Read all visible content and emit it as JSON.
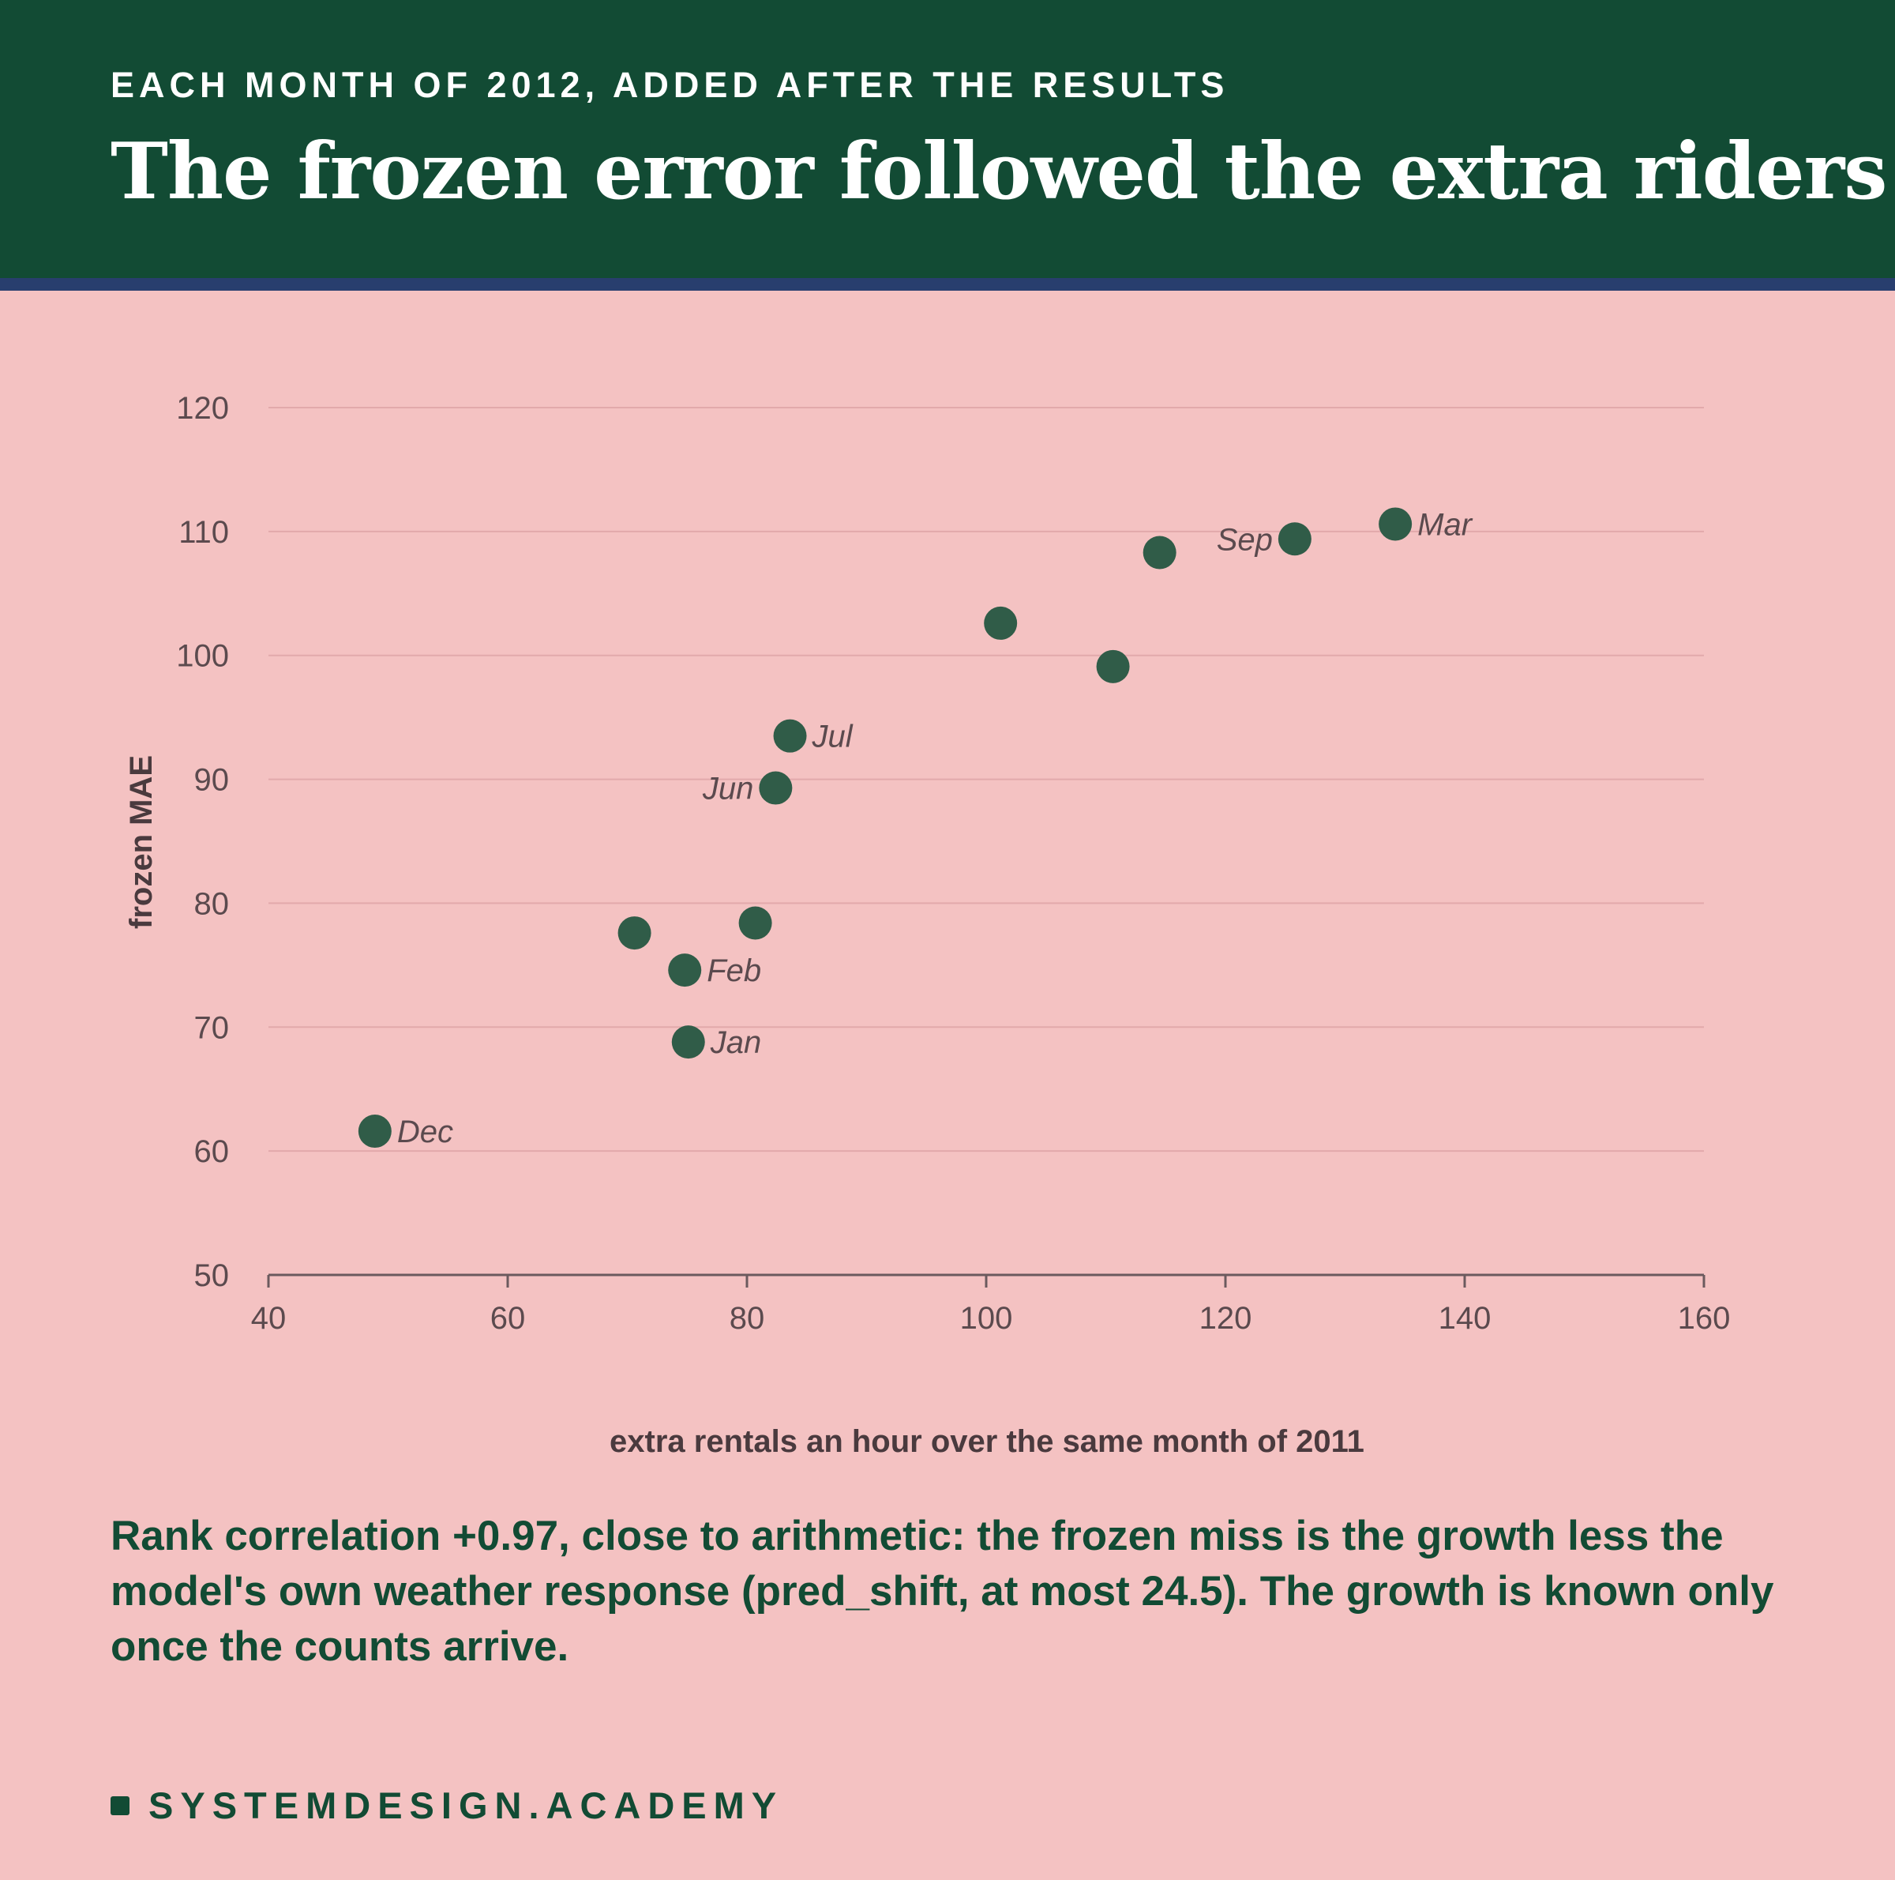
{
  "header": {
    "kicker": "EACH MONTH OF 2012, ADDED AFTER THE RESULTS",
    "title": "The frozen error followed the extra riders"
  },
  "chart_data": {
    "type": "scatter",
    "xlabel": "extra rentals an hour over the same month of 2011",
    "ylabel": "frozen MAE",
    "xlim": [
      40,
      160
    ],
    "ylim": [
      50,
      120
    ],
    "xticks": [
      40,
      60,
      80,
      100,
      120,
      140,
      160
    ],
    "yticks": [
      50,
      60,
      70,
      80,
      90,
      100,
      110,
      120
    ],
    "grid": "horizontal",
    "points": [
      {
        "x": 48.9,
        "y": 61.6,
        "label": "Dec",
        "side": "right"
      },
      {
        "x": 70.6,
        "y": 77.6,
        "label": "",
        "side": "right"
      },
      {
        "x": 74.8,
        "y": 74.6,
        "label": "Feb",
        "side": "right"
      },
      {
        "x": 75.1,
        "y": 68.8,
        "label": "Jan",
        "side": "right"
      },
      {
        "x": 80.7,
        "y": 78.4,
        "label": "",
        "side": "right"
      },
      {
        "x": 82.4,
        "y": 89.3,
        "label": "Jun",
        "side": "left"
      },
      {
        "x": 83.6,
        "y": 93.5,
        "label": "Jul",
        "side": "right"
      },
      {
        "x": 101.2,
        "y": 102.6,
        "label": "",
        "side": "right"
      },
      {
        "x": 110.6,
        "y": 99.1,
        "label": "",
        "side": "right"
      },
      {
        "x": 114.5,
        "y": 108.3,
        "label": "",
        "side": "right"
      },
      {
        "x": 125.8,
        "y": 109.4,
        "label": "Sep",
        "side": "left"
      },
      {
        "x": 134.2,
        "y": 110.6,
        "label": "Mar",
        "side": "right"
      }
    ],
    "colors": {
      "point": "#305c48",
      "grid": "#e2a9ab",
      "axis": "#6b5a5e"
    }
  },
  "note": "Rank correlation +0.97, close to arithmetic: the frozen miss is the growth less the model's own weather response (pred_shift, at most 24.5). The growth is known only once the counts arrive.",
  "brand": "SYSTEMDESIGN.ACADEMY"
}
